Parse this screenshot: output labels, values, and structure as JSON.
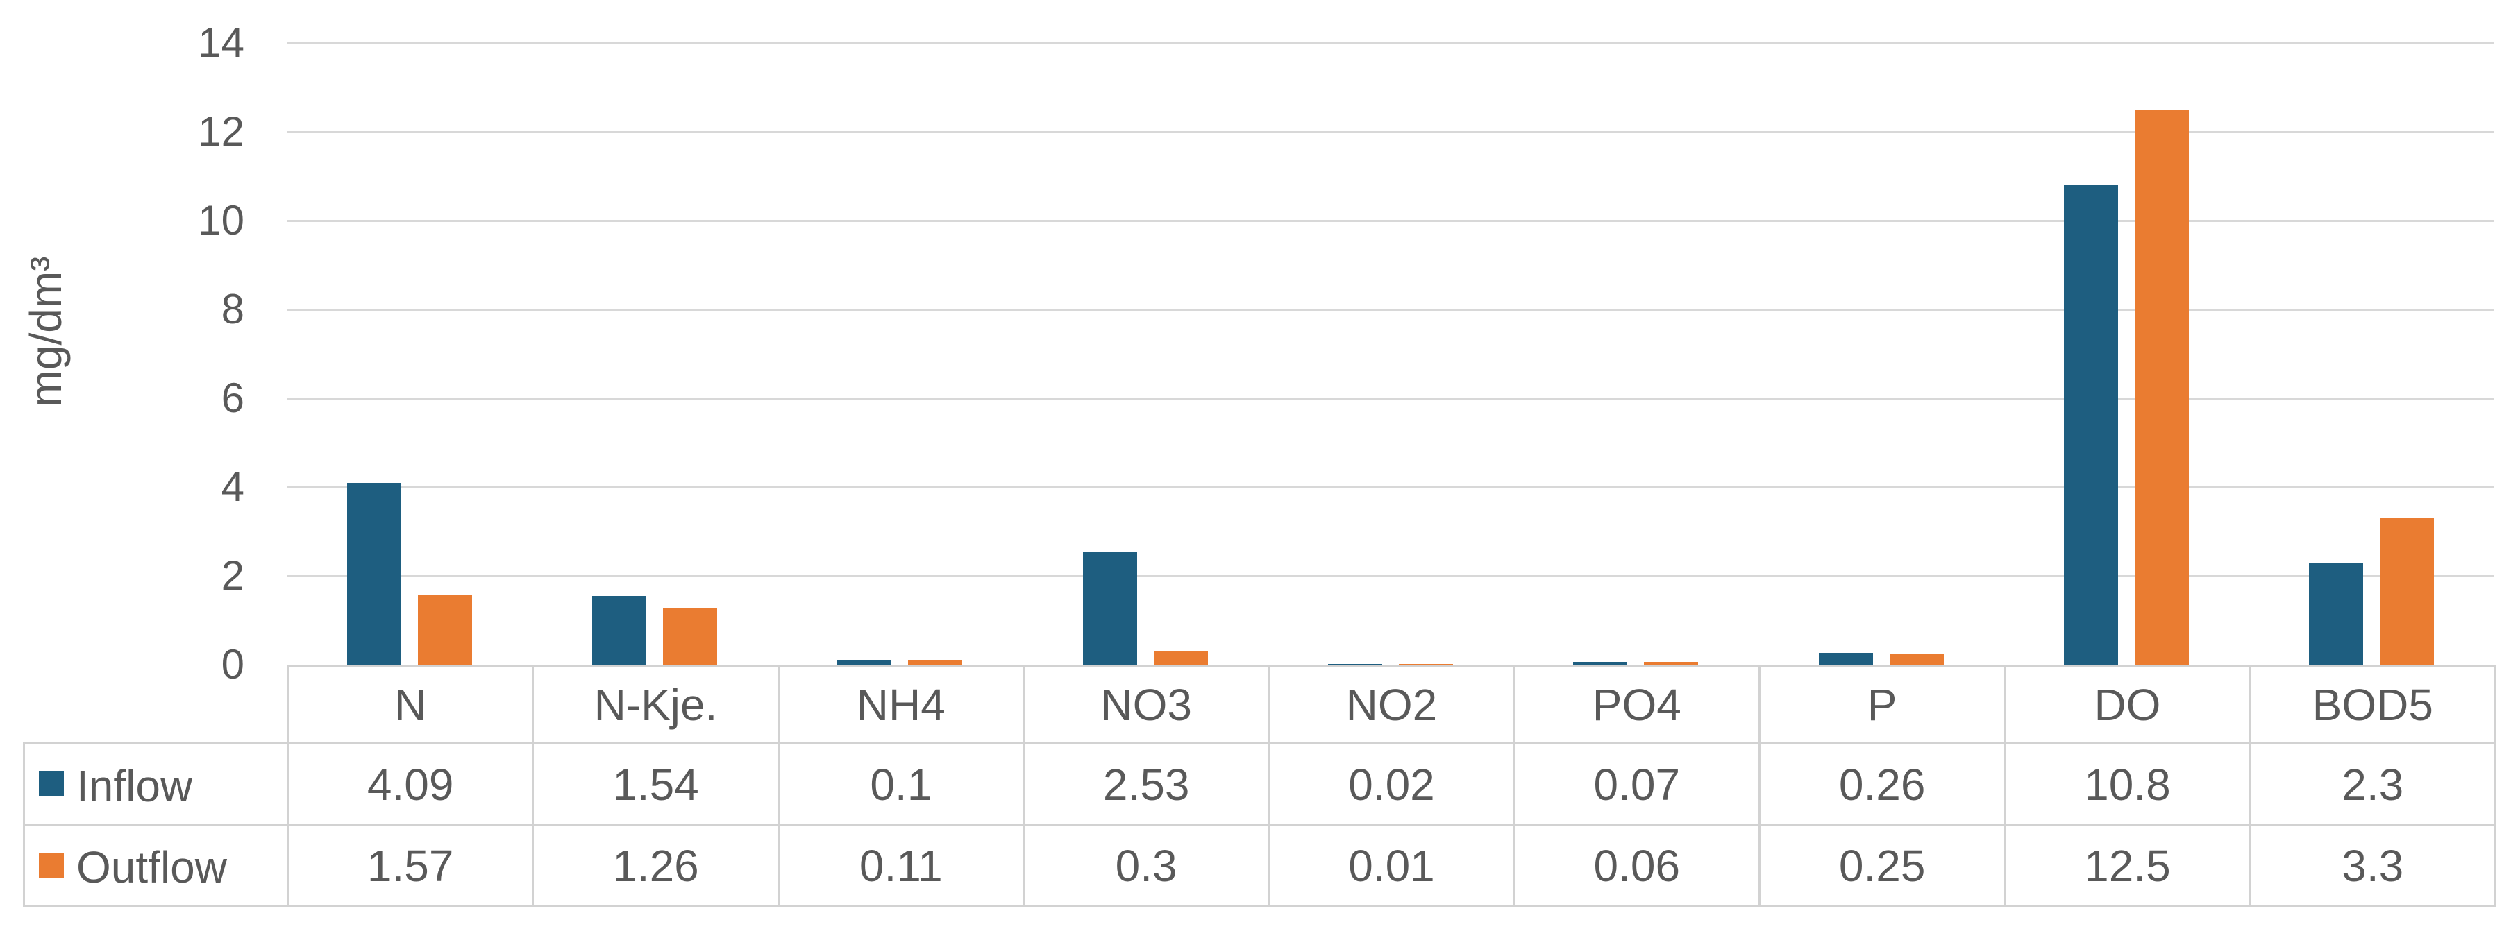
{
  "chart_data": {
    "type": "bar",
    "title": "",
    "xlabel": "",
    "ylabel": "mg/dm³",
    "ylim": [
      0,
      14
    ],
    "ytick_step": 2,
    "yticks": [
      0,
      2,
      4,
      6,
      8,
      10,
      12,
      14
    ],
    "grid": true,
    "legend_position": "table-rows-left",
    "categories": [
      "N",
      "N-Kje.",
      "NH4",
      "NO3",
      "NO2",
      "PO4",
      "P",
      "DO",
      "BOD5"
    ],
    "series": [
      {
        "name": "Inflow",
        "color": "#1E5E80",
        "values": [
          "4.09",
          "1.54",
          "0.1",
          "2.53",
          "0.02",
          "0.07",
          "0.26",
          "10.8",
          "2.3"
        ]
      },
      {
        "name": "Outflow",
        "color": "#EA7C31",
        "values": [
          "1.57",
          "1.26",
          "0.11",
          "0.3",
          "0.01",
          "0.06",
          "0.25",
          "12.5",
          "3.3"
        ]
      }
    ]
  },
  "colors": {
    "background": "#FFFFFF",
    "text": "#595959",
    "gridline": "#D8D8D8",
    "table_border": "#D2D2D2"
  }
}
